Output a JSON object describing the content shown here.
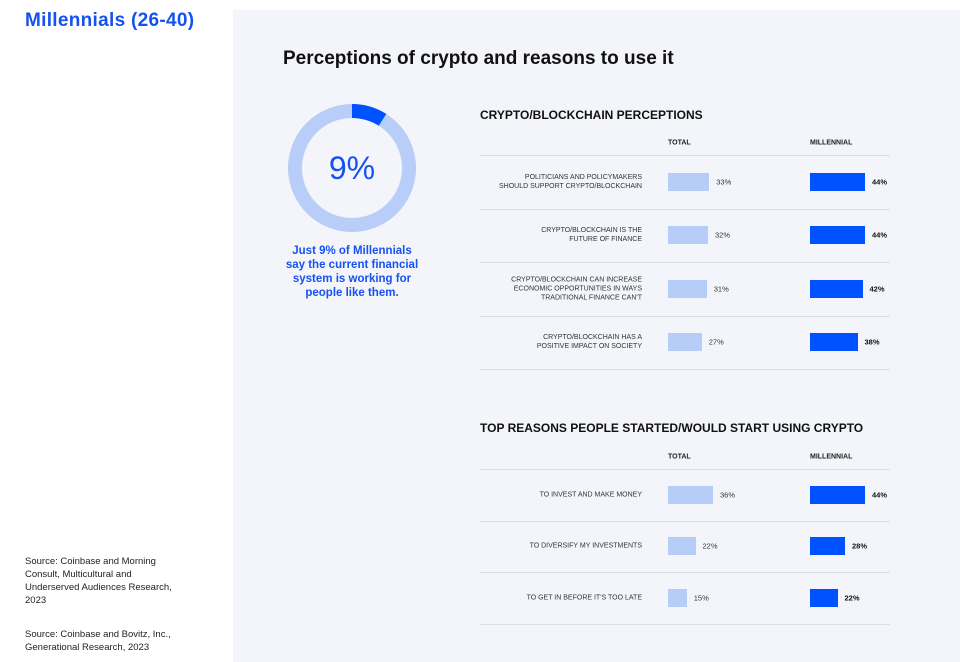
{
  "header": {
    "title": "Millennials (26-40)"
  },
  "sources": [
    "Source: Coinbase and Morning Consult, Multicultural and Underserved Audiences Research, 2023",
    "Source: Coinbase and Bovitz, Inc., Generational Research, 2023"
  ],
  "panel": {
    "title": "Perceptions of crypto and reasons to use it"
  },
  "chart_data": [
    {
      "type": "donut",
      "values": [
        9
      ],
      "value_labels": [
        "9%"
      ],
      "color": "#0052ff",
      "track_color": "#b8cdf7",
      "annotation": [
        "Just 9% of Millennials",
        "say the current financial",
        "system is working for",
        "people like them."
      ]
    },
    {
      "type": "hbar",
      "title": "CRYPTO/BLOCKCHAIN PERCEPTIONS",
      "categories": [
        "POLITICIANS AND POLICYMAKERS\nSHOULD SUPPORT CRYPTO/BLOCKCHAIN",
        "CRYPTO/BLOCKCHAIN IS THE\nFUTURE OF FINANCE",
        "CRYPTO/BLOCKCHAIN CAN INCREASE\nECONOMIC OPPORTUNITIES IN WAYS\nTRADITIONAL FINANCE CAN'T",
        "CRYPTO/BLOCKCHAIN HAS A\nPOSITIVE IMPACT ON SOCIETY"
      ],
      "series": [
        {
          "name": "TOTAL",
          "color": "#b5cdf7",
          "values": [
            33,
            32,
            31,
            27
          ],
          "value_labels": [
            "33%",
            "32%",
            "31%",
            "27%"
          ]
        },
        {
          "name": "MILLENNIAL",
          "color": "#0052ff",
          "values": [
            44,
            44,
            42,
            38
          ],
          "value_labels": [
            "44%",
            "44%",
            "42%",
            "38%"
          ]
        }
      ]
    },
    {
      "type": "hbar",
      "title": "TOP REASONS PEOPLE STARTED/WOULD START USING CRYPTO",
      "categories": [
        "TO INVEST AND MAKE MONEY",
        "TO DIVERSIFY MY INVESTMENTS",
        "TO GET IN BEFORE IT'S TOO LATE"
      ],
      "series": [
        {
          "name": "TOTAL",
          "color": "#b5cdf7",
          "values": [
            36,
            22,
            15
          ],
          "value_labels": [
            "36%",
            "22%",
            "15%"
          ]
        },
        {
          "name": "MILLENNIAL",
          "color": "#0052ff",
          "values": [
            44,
            28,
            22
          ],
          "value_labels": [
            "44%",
            "28%",
            "22%"
          ]
        }
      ]
    }
  ]
}
